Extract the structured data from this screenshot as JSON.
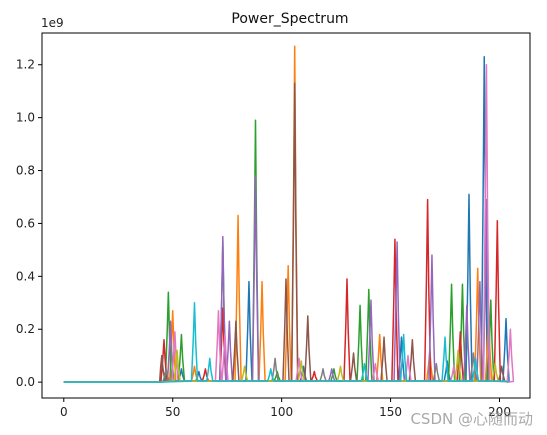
{
  "chart_data": {
    "type": "line",
    "title": "Power_Spectrum",
    "xlabel": "",
    "ylabel": "",
    "y_offset_label": "1e9",
    "xlim": [
      -10,
      214
    ],
    "ylim": [
      -0.06,
      1.32
    ],
    "x_ticks": [
      0,
      50,
      100,
      150,
      200
    ],
    "x_tick_labels": [
      "0",
      "50",
      "100",
      "150",
      "200"
    ],
    "y_ticks": [
      0.0,
      0.2,
      0.4,
      0.6,
      0.8,
      1.0,
      1.2
    ],
    "y_tick_labels": [
      "0.0",
      "0.2",
      "0.4",
      "0.6",
      "0.8",
      "1.0",
      "1.2"
    ],
    "grid": false,
    "legend": "none",
    "x_range": [
      0,
      204
    ],
    "zero_until": 44,
    "series_colors": [
      "#1f77b4",
      "#ff7f0e",
      "#2ca02c",
      "#d62728",
      "#9467bd",
      "#8c564b",
      "#e377c2",
      "#7f7f7f",
      "#bcbd22",
      "#17becf"
    ],
    "series": [
      {
        "color": "#1f77b4",
        "peaks": [
          [
            85,
            0.38
          ],
          [
            54,
            0.05
          ],
          [
            62,
            0.04
          ],
          [
            110,
            0.06
          ],
          [
            155,
            0.17
          ],
          [
            186,
            0.71
          ],
          [
            193,
            1.23
          ],
          [
            203,
            0.24
          ],
          [
            176,
            0.08
          ]
        ]
      },
      {
        "color": "#ff7f0e",
        "peaks": [
          [
            50,
            0.27
          ],
          [
            80,
            0.63
          ],
          [
            91,
            0.38
          ],
          [
            103,
            0.44
          ],
          [
            106,
            1.27
          ],
          [
            145,
            0.18
          ],
          [
            168,
            0.12
          ],
          [
            190,
            0.43
          ],
          [
            195,
            0.25
          ],
          [
            60,
            0.06
          ]
        ]
      },
      {
        "color": "#2ca02c",
        "peaks": [
          [
            48,
            0.34
          ],
          [
            54,
            0.18
          ],
          [
            73,
            0.53
          ],
          [
            88,
            0.99
          ],
          [
            124,
            0.05
          ],
          [
            136,
            0.29
          ],
          [
            140,
            0.35
          ],
          [
            178,
            0.37
          ],
          [
            183,
            0.37
          ],
          [
            196,
            0.31
          ],
          [
            98,
            0.04
          ]
        ]
      },
      {
        "color": "#d62728",
        "peaks": [
          [
            46,
            0.16
          ],
          [
            73,
            0.28
          ],
          [
            130,
            0.39
          ],
          [
            152,
            0.54
          ],
          [
            167,
            0.69
          ],
          [
            182,
            0.19
          ],
          [
            199,
            0.61
          ],
          [
            115,
            0.04
          ],
          [
            65,
            0.05
          ]
        ]
      },
      {
        "color": "#9467bd",
        "peaks": [
          [
            49,
            0.23
          ],
          [
            73,
            0.55
          ],
          [
            76,
            0.23
          ],
          [
            88,
            0.78
          ],
          [
            141,
            0.31
          ],
          [
            153,
            0.53
          ],
          [
            169,
            0.48
          ],
          [
            185,
            0.29
          ],
          [
            191,
            0.38
          ],
          [
            194,
            0.69
          ],
          [
            123,
            0.05
          ]
        ]
      },
      {
        "color": "#8c564b",
        "peaks": [
          [
            45,
            0.1
          ],
          [
            79,
            0.23
          ],
          [
            102,
            0.39
          ],
          [
            106,
            1.13
          ],
          [
            112,
            0.25
          ],
          [
            133,
            0.11
          ],
          [
            147,
            0.17
          ],
          [
            160,
            0.16
          ],
          [
            201,
            0.06
          ]
        ]
      },
      {
        "color": "#e377c2",
        "peaks": [
          [
            51,
            0.19
          ],
          [
            71,
            0.27
          ],
          [
            74,
            0.18
          ],
          [
            108,
            0.09
          ],
          [
            143,
            0.07
          ],
          [
            158,
            0.1
          ],
          [
            179,
            0.06
          ],
          [
            194,
            1.2
          ],
          [
            205,
            0.2
          ]
        ]
      },
      {
        "color": "#7f7f7f",
        "peaks": [
          [
            47,
            0.05
          ],
          [
            97,
            0.09
          ],
          [
            119,
            0.05
          ],
          [
            171,
            0.07
          ],
          [
            188,
            0.11
          ]
        ]
      },
      {
        "color": "#bcbd22",
        "peaks": [
          [
            52,
            0.12
          ],
          [
            83,
            0.06
          ],
          [
            109,
            0.08
          ],
          [
            127,
            0.06
          ],
          [
            181,
            0.12
          ],
          [
            198,
            0.07
          ]
        ]
      },
      {
        "color": "#17becf",
        "peaks": [
          [
            60,
            0.3
          ],
          [
            67,
            0.09
          ],
          [
            95,
            0.05
          ],
          [
            138,
            0.07
          ],
          [
            156,
            0.18
          ],
          [
            175,
            0.17
          ],
          [
            189,
            0.09
          ]
        ]
      }
    ]
  },
  "watermark": "CSDN @心随而动"
}
